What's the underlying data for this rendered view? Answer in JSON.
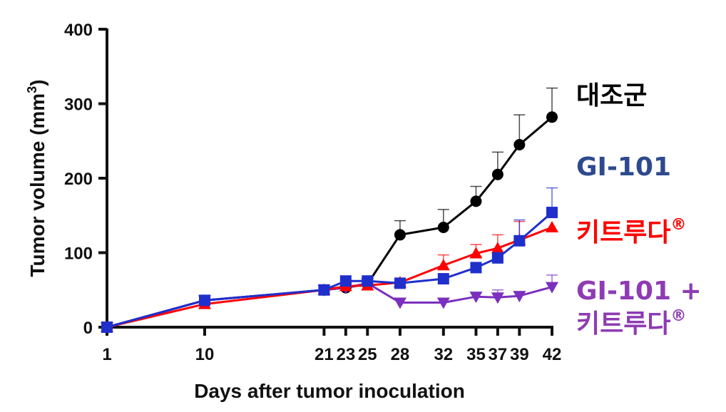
{
  "chart_data": {
    "type": "line",
    "xlabel": "Days after tumor inoculation",
    "ylabel_main": "Tumor volume (mm",
    "ylabel_sup": "3",
    "ylabel_close": ")",
    "ylim": [
      0,
      400
    ],
    "yticks": [
      0,
      100,
      200,
      300,
      400
    ],
    "x": [
      1,
      10,
      21,
      23,
      25,
      28,
      32,
      35,
      37,
      39,
      42
    ],
    "grid": false,
    "legend_position": "right",
    "series": [
      {
        "name": "대조군",
        "color": "#000000",
        "marker": "circle",
        "values": [
          0,
          36,
          50,
          53,
          58,
          124,
          134,
          169,
          205,
          245,
          282
        ],
        "errors": [
          0,
          0,
          0,
          0,
          0,
          19,
          24,
          20,
          30,
          40,
          39
        ]
      },
      {
        "name": "GI-101",
        "color": "#1f2fcc",
        "legend_color": "#2e4a8e",
        "marker": "square",
        "values": [
          0,
          36,
          50,
          62,
          62,
          59,
          65,
          80,
          93,
          116,
          154
        ],
        "errors": [
          0,
          0,
          0,
          0,
          0,
          0,
          0,
          0,
          0,
          28,
          33
        ]
      },
      {
        "name": "키트루다",
        "name_sup": "®",
        "color": "#ff0000",
        "marker": "triangle-up",
        "values": [
          0,
          31,
          50,
          55,
          56,
          60,
          83,
          99,
          106,
          117,
          134
        ],
        "errors": [
          0,
          0,
          0,
          0,
          0,
          0,
          14,
          12,
          18,
          25,
          0
        ]
      },
      {
        "name": "GI-101 +",
        "name_line2": "키트루다",
        "name_sup": "®",
        "color": "#7b2fbe",
        "legend_color": "#8e3bb4",
        "marker": "triangle-down",
        "values": [
          0,
          36,
          50,
          53,
          59,
          33,
          33,
          41,
          40,
          42,
          54
        ],
        "errors": [
          0,
          0,
          0,
          0,
          0,
          0,
          0,
          0,
          10,
          5,
          16
        ]
      }
    ]
  }
}
